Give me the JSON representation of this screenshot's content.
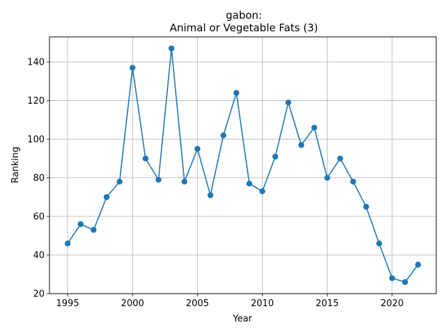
{
  "chart_data": {
    "type": "line",
    "title_line1": "gabon:",
    "title_line2": "Animal or Vegetable Fats (3)",
    "xlabel": "Year",
    "ylabel": "Ranking",
    "xlim": [
      1993.6,
      2023.4
    ],
    "ylim": [
      20,
      153
    ],
    "xticks": [
      1995,
      2000,
      2005,
      2010,
      2015,
      2020
    ],
    "yticks": [
      20,
      40,
      60,
      80,
      100,
      120,
      140
    ],
    "grid": true,
    "line_color": "#1f77b4",
    "series": [
      {
        "x": [
          1995,
          1996,
          1997,
          1998,
          1999,
          2000,
          2001,
          2002,
          2003,
          2004,
          2005,
          2006,
          2007,
          2008,
          2009,
          2010,
          2011,
          2012,
          2013,
          2014,
          2015,
          2016,
          2017,
          2018,
          2019,
          2020,
          2021,
          2022
        ],
        "y": [
          46,
          56,
          53,
          70,
          78,
          137,
          90,
          79,
          147,
          78,
          95,
          71,
          102,
          124,
          77,
          73,
          91,
          119,
          97,
          106,
          80,
          90,
          78,
          65,
          46,
          28,
          26,
          35
        ]
      }
    ]
  }
}
